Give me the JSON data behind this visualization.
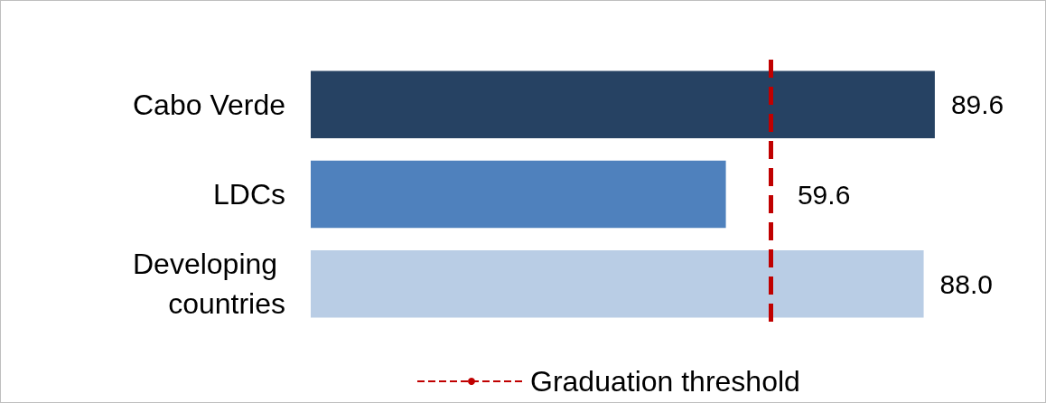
{
  "chart_data": {
    "type": "bar",
    "orientation": "horizontal",
    "categories": [
      "Cabo Verde",
      "LDCs",
      "Developing countries"
    ],
    "values": [
      89.6,
      59.6,
      88.0
    ],
    "colors": [
      "#264263",
      "#4f81bd",
      "#b9cde5"
    ],
    "value_labels": [
      "89.6",
      "59.6",
      "88.0"
    ],
    "xlim": [
      0,
      90
    ],
    "tick_labels": "y",
    "grid": false,
    "ref_lines": [
      {
        "axis": "x",
        "value": 66,
        "label": "Graduation threshold",
        "color": "#c00000",
        "line_style": "dashed"
      }
    ],
    "legend": "bottom"
  }
}
